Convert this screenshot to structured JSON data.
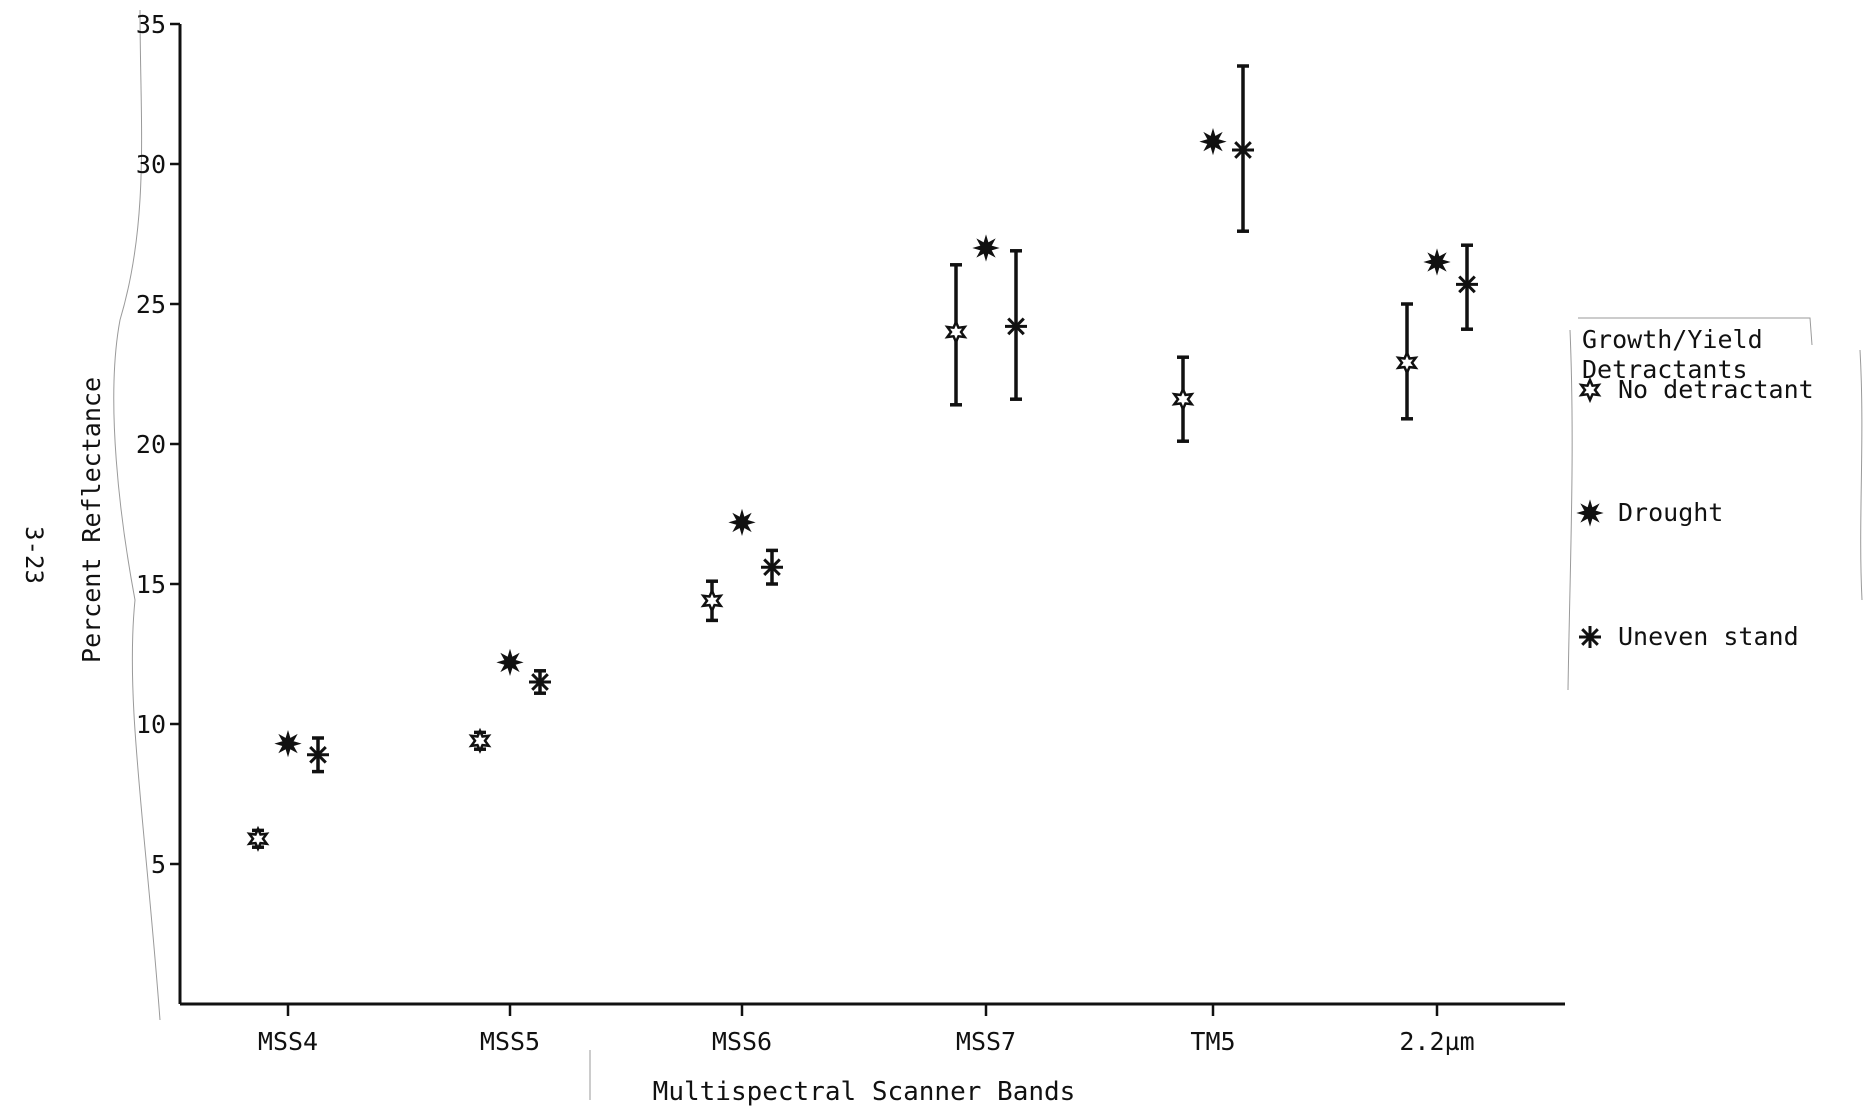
{
  "page_label": "3-23",
  "chart_data": {
    "type": "scatter",
    "title": "",
    "xlabel": "Multispectral Scanner Bands",
    "ylabel": "Percent Reflectance",
    "categories": [
      "MSS4",
      "MSS5",
      "MSS6",
      "MSS7",
      "TM5",
      "2.2µm"
    ],
    "ylim": [
      0,
      35
    ],
    "yticks": [
      5,
      10,
      15,
      20,
      25,
      30,
      35
    ],
    "grid": false,
    "legend": {
      "title_line1": "Growth/Yield",
      "title_line2": "Detractants",
      "placement": "right",
      "entries": [
        {
          "label": "No detractant",
          "marker": "open-star"
        },
        {
          "label": "Drought",
          "marker": "filled-star"
        },
        {
          "label": "Uneven stand",
          "marker": "asterisk"
        }
      ]
    },
    "series": [
      {
        "name": "No detractant",
        "marker": "open-star",
        "values": [
          5.9,
          9.4,
          14.4,
          24.0,
          21.6,
          22.9
        ],
        "error_low": [
          5.6,
          9.1,
          13.7,
          21.4,
          20.1,
          20.9
        ],
        "error_high": [
          6.2,
          9.7,
          15.1,
          26.4,
          23.1,
          25.0
        ]
      },
      {
        "name": "Drought",
        "marker": "filled-star",
        "values": [
          9.3,
          12.2,
          17.2,
          27.0,
          30.8,
          26.5
        ],
        "error_low": [
          null,
          null,
          null,
          null,
          null,
          null
        ],
        "error_high": [
          null,
          null,
          null,
          null,
          null,
          null
        ]
      },
      {
        "name": "Uneven stand",
        "marker": "asterisk",
        "values": [
          8.9,
          11.5,
          15.6,
          24.2,
          30.5,
          25.7
        ],
        "error_low": [
          8.3,
          11.1,
          15.0,
          21.6,
          27.6,
          24.1
        ],
        "error_high": [
          9.5,
          11.9,
          16.2,
          26.9,
          33.5,
          27.1
        ]
      }
    ]
  }
}
